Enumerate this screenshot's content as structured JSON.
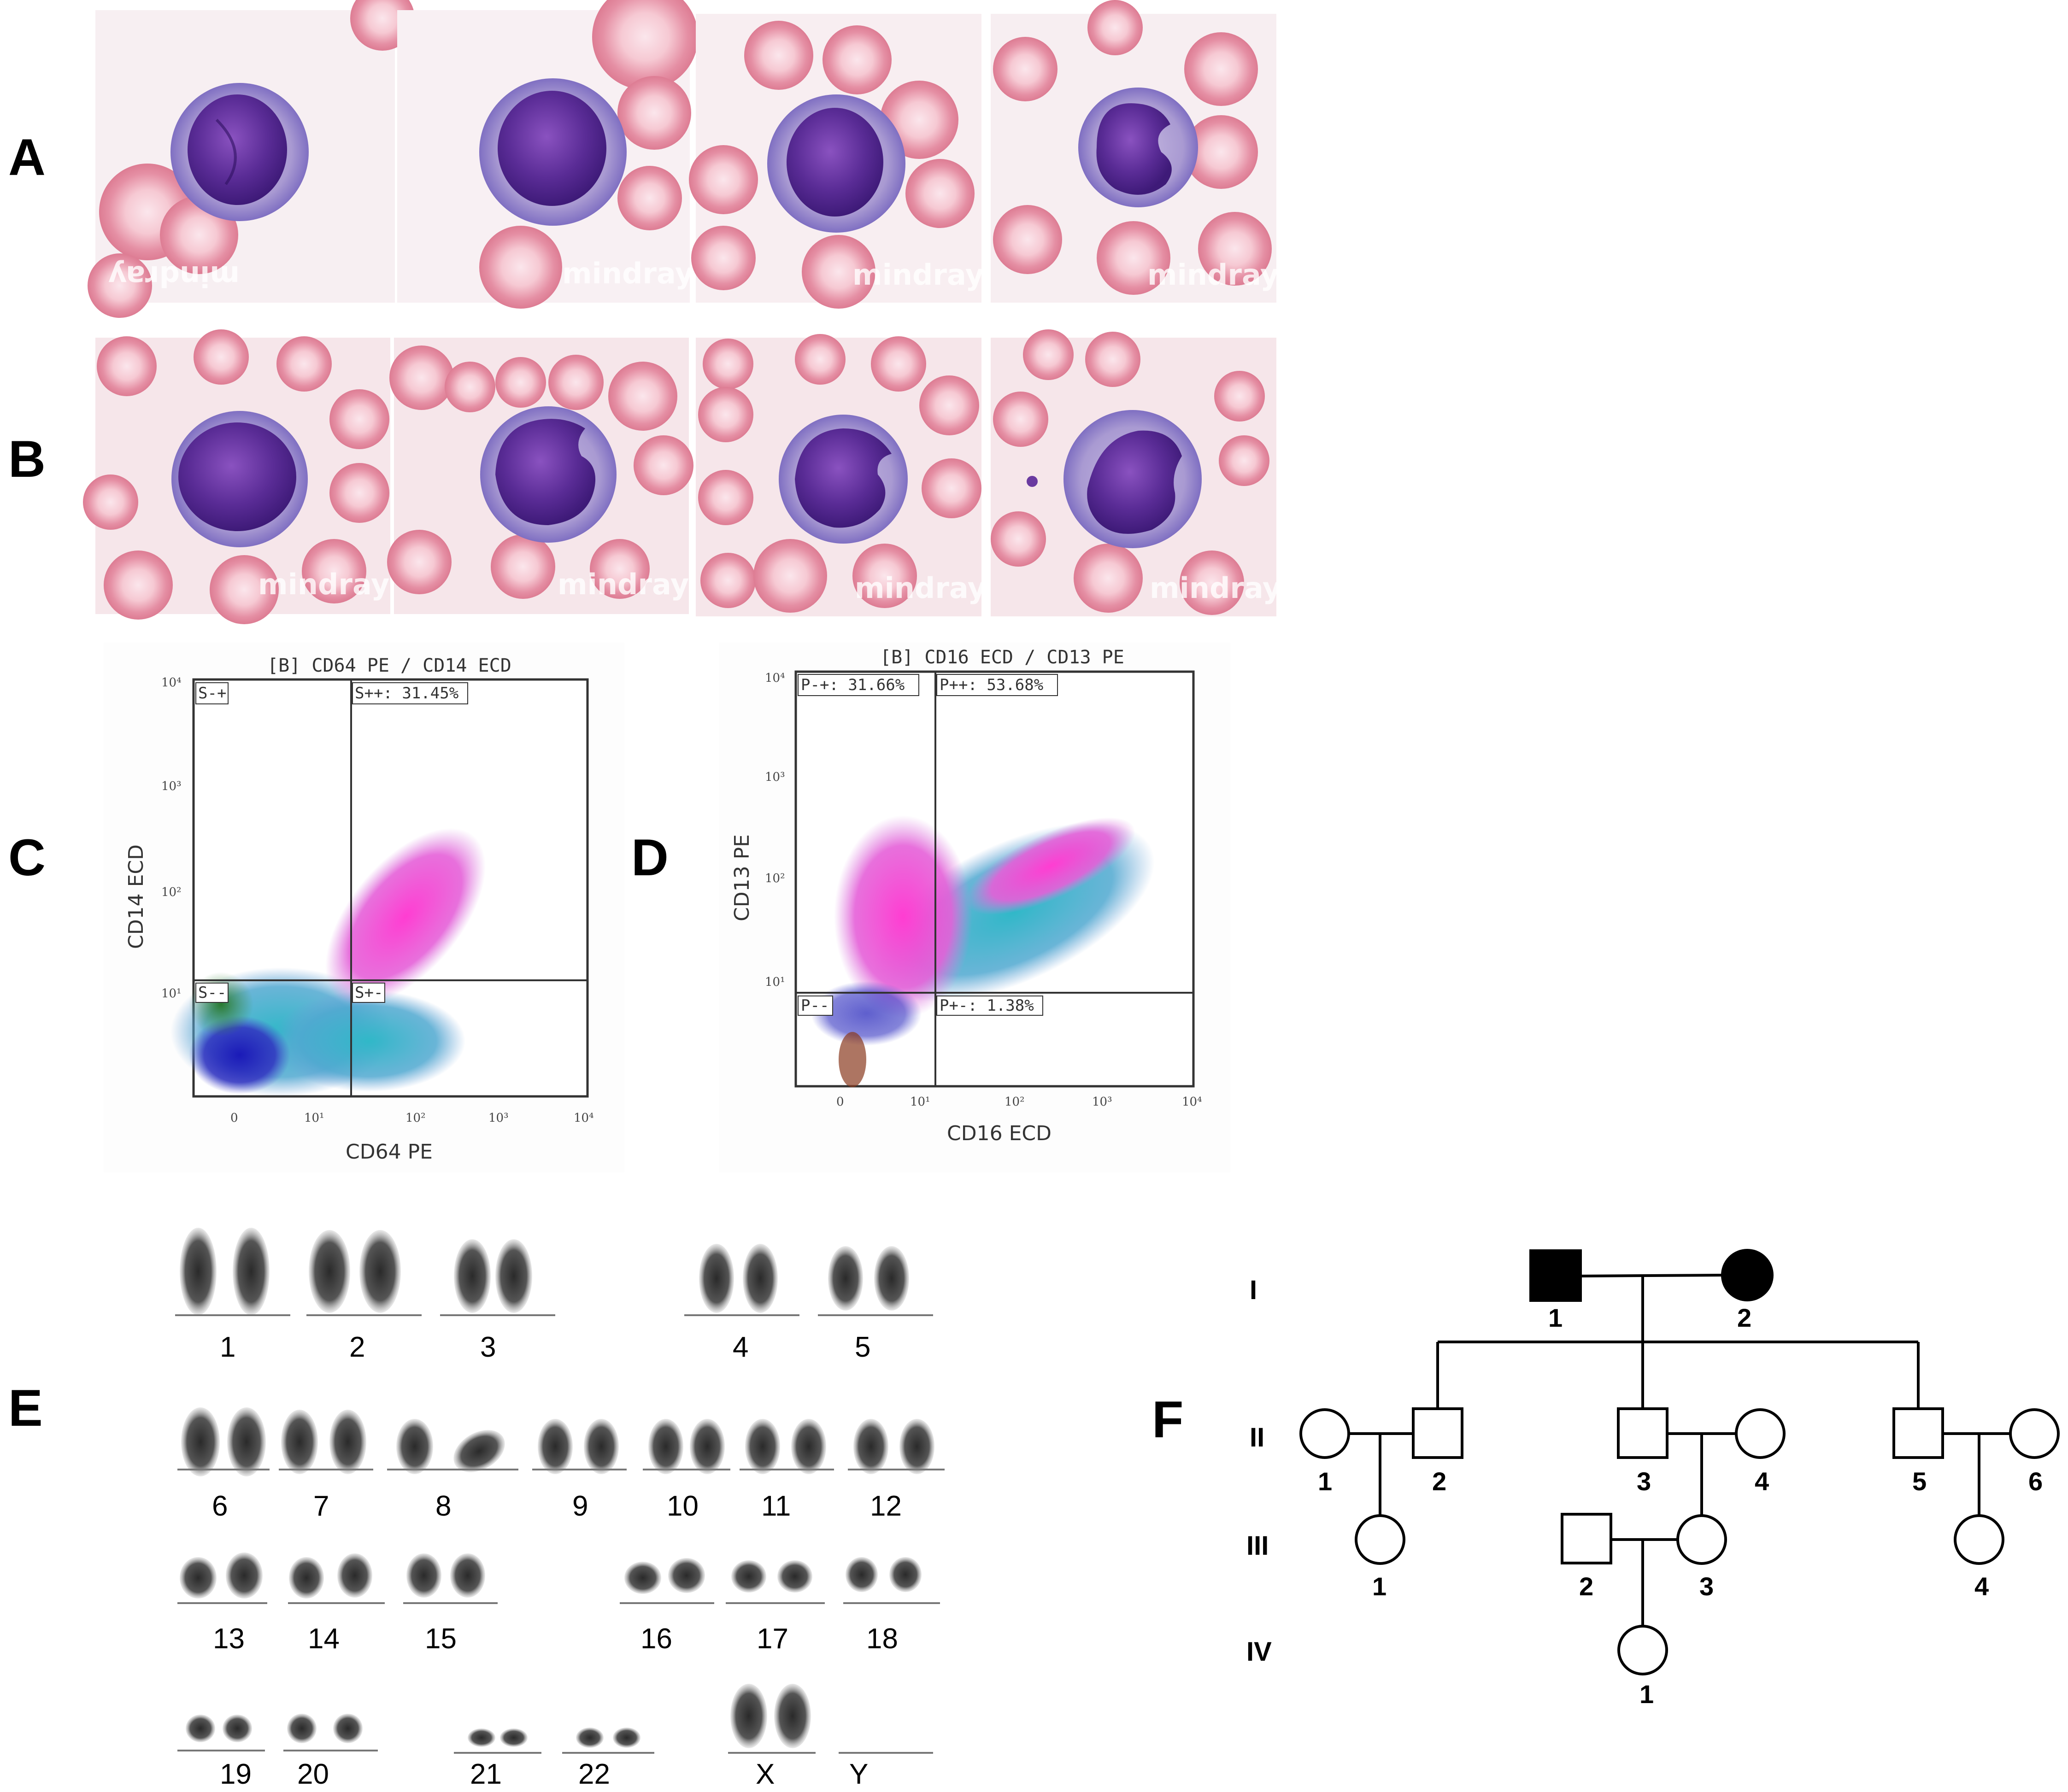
{
  "panels": [
    {
      "letter": "A"
    },
    {
      "letter": "B"
    },
    {
      "letter": "C"
    },
    {
      "letter": "D"
    },
    {
      "letter": "E"
    },
    {
      "letter": "F"
    }
  ],
  "watermark": "mindray",
  "flow_c": {
    "title": "[B] CD64  PE / CD14  ECD",
    "xlabel": "CD64  PE",
    "ylabel": "CD14  ECD",
    "x_ticks": [
      "0",
      "10¹",
      "10²",
      "10³",
      "10⁴"
    ],
    "y_ticks": [
      "10⁴",
      "10³",
      "10²",
      "10¹"
    ],
    "gates": {
      "ul": "S-+",
      "ur": "S++: 31.45%",
      "ll": "S--",
      "lr": "S+-"
    }
  },
  "flow_d": {
    "title": "[B] CD16 ECD / CD13 PE",
    "xlabel": "CD16 ECD",
    "ylabel": "CD13 PE",
    "x_ticks": [
      "0",
      "10¹",
      "10²",
      "10³",
      "10⁴"
    ],
    "y_ticks": [
      "10⁴",
      "10³",
      "10²",
      "10¹"
    ],
    "gates": {
      "ul": "P-+: 31.66%",
      "ur": "P++: 53.68%",
      "ll": "P--",
      "lr": "P+-: 1.38%"
    }
  },
  "karyotype": [
    "1",
    "2",
    "3",
    "4",
    "5",
    "6",
    "7",
    "8",
    "9",
    "10",
    "11",
    "12",
    "13",
    "14",
    "15",
    "16",
    "17",
    "18",
    "19",
    "20",
    "21",
    "22",
    "X",
    "Y"
  ],
  "pedigree": {
    "generations": [
      "I",
      "II",
      "III",
      "IV"
    ],
    "numbers": {
      "I": [
        "1",
        "2"
      ],
      "II": [
        "1",
        "2",
        "3",
        "4",
        "5",
        "6"
      ],
      "III": [
        "1",
        "2",
        "3",
        "4"
      ],
      "IV": [
        "1"
      ]
    }
  }
}
